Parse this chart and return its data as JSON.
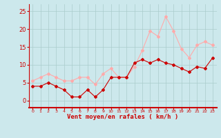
{
  "hours": [
    0,
    1,
    2,
    3,
    4,
    5,
    6,
    7,
    8,
    9,
    10,
    11,
    12,
    13,
    14,
    15,
    16,
    17,
    18,
    19,
    20,
    21,
    22,
    23
  ],
  "wind_avg": [
    4.0,
    4.0,
    5.0,
    4.0,
    3.0,
    1.0,
    1.0,
    3.0,
    1.0,
    3.0,
    6.5,
    6.5,
    6.5,
    10.5,
    11.5,
    10.5,
    11.5,
    10.5,
    10.0,
    9.0,
    8.0,
    9.5,
    9.0,
    12.0
  ],
  "wind_gust": [
    5.5,
    6.5,
    7.5,
    6.5,
    5.5,
    5.5,
    6.5,
    6.5,
    4.5,
    7.5,
    9.0,
    6.5,
    6.5,
    9.5,
    14.0,
    19.5,
    18.0,
    23.5,
    19.5,
    14.5,
    12.0,
    15.5,
    16.5,
    15.5
  ],
  "avg_color": "#cc0000",
  "gust_color": "#ffaaaa",
  "bg_color": "#cce8ec",
  "grid_color": "#aacccc",
  "xlabel": "Vent moyen/en rafales ( km/h )",
  "xlabel_color": "#cc0000",
  "tick_color": "#cc0000",
  "ylim": [
    -2,
    27
  ],
  "yticks": [
    0,
    5,
    10,
    15,
    20,
    25
  ],
  "xlim": [
    -0.5,
    23.5
  ]
}
